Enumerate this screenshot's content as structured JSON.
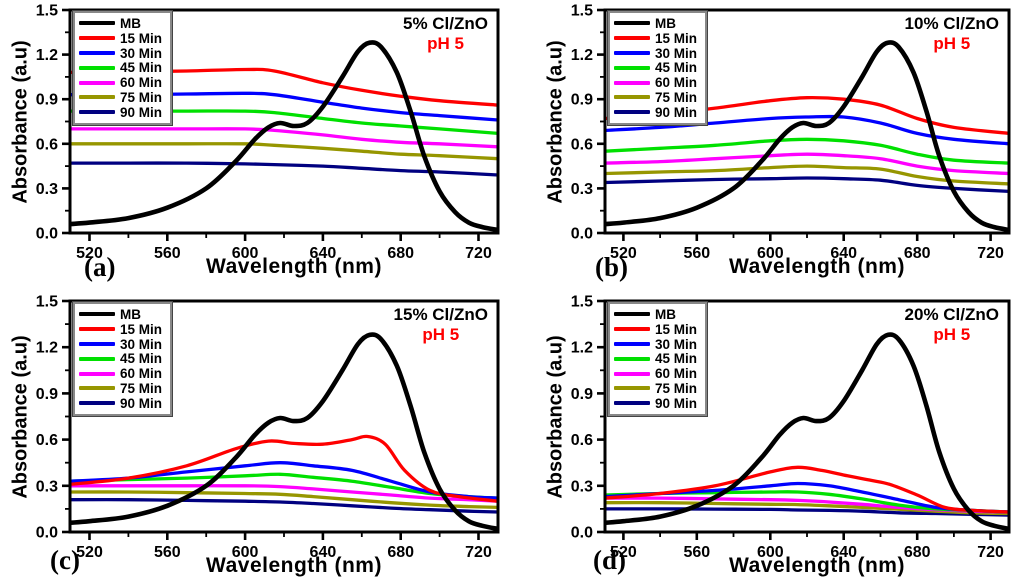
{
  "figure_background": "#ffffff",
  "annotation_color": "#fe0000",
  "axis_color": "#000000",
  "chart_data": [
    {
      "type": "line",
      "panel_label": "(a)",
      "title": "5% Cl/ZnO",
      "annotation": "pH 5",
      "xlabel": "Wavelength (nm)",
      "ylabel": "Absorbance (a.u)",
      "xlim": [
        510,
        730
      ],
      "ylim": [
        0,
        1.5
      ],
      "xticks": [
        "520",
        "560",
        "600",
        "640",
        "680",
        "720"
      ],
      "xminor": [
        540,
        580,
        620,
        660,
        700
      ],
      "yticks": [
        "0.0",
        "0.3",
        "0.6",
        "0.9",
        "1.2",
        "1.5"
      ],
      "yminor": [
        0.15,
        0.45,
        0.75,
        1.05,
        1.35
      ],
      "grid": false,
      "legend_position": "top-left",
      "series": [
        {
          "name": "MB",
          "color": "#000000",
          "x": [
            510,
            520,
            540,
            560,
            580,
            595,
            605,
            612,
            618,
            625,
            632,
            640,
            650,
            658,
            664,
            670,
            678,
            685,
            692,
            700,
            708,
            715,
            722,
            730
          ],
          "y": [
            0.06,
            0.07,
            0.1,
            0.17,
            0.3,
            0.48,
            0.63,
            0.71,
            0.74,
            0.72,
            0.74,
            0.85,
            1.05,
            1.22,
            1.28,
            1.25,
            1.08,
            0.82,
            0.52,
            0.28,
            0.14,
            0.07,
            0.04,
            0.02
          ]
        },
        {
          "name": "15 Min",
          "color": "#fe0000",
          "x": [
            510,
            540,
            570,
            600,
            615,
            640,
            660,
            680,
            700,
            730
          ],
          "y": [
            1.08,
            1.085,
            1.09,
            1.1,
            1.09,
            1.01,
            0.96,
            0.92,
            0.89,
            0.86
          ]
        },
        {
          "name": "30 Min",
          "color": "#0000fe",
          "x": [
            510,
            540,
            570,
            600,
            615,
            640,
            660,
            680,
            700,
            730
          ],
          "y": [
            0.93,
            0.93,
            0.935,
            0.94,
            0.93,
            0.88,
            0.84,
            0.81,
            0.79,
            0.76
          ]
        },
        {
          "name": "45 Min",
          "color": "#00e000",
          "x": [
            510,
            540,
            570,
            600,
            615,
            640,
            660,
            680,
            700,
            730
          ],
          "y": [
            0.82,
            0.82,
            0.82,
            0.82,
            0.81,
            0.77,
            0.74,
            0.72,
            0.7,
            0.67
          ]
        },
        {
          "name": "60 Min",
          "color": "#ff00ff",
          "x": [
            510,
            540,
            570,
            600,
            615,
            640,
            660,
            680,
            700,
            730
          ],
          "y": [
            0.7,
            0.7,
            0.7,
            0.7,
            0.69,
            0.66,
            0.63,
            0.61,
            0.6,
            0.58
          ]
        },
        {
          "name": "75 Min",
          "color": "#969600",
          "x": [
            510,
            540,
            570,
            600,
            615,
            640,
            660,
            680,
            700,
            730
          ],
          "y": [
            0.6,
            0.6,
            0.6,
            0.6,
            0.59,
            0.57,
            0.55,
            0.53,
            0.52,
            0.5
          ]
        },
        {
          "name": "90 Min",
          "color": "#000080",
          "x": [
            510,
            540,
            570,
            600,
            615,
            640,
            660,
            680,
            700,
            730
          ],
          "y": [
            0.47,
            0.47,
            0.47,
            0.465,
            0.46,
            0.45,
            0.435,
            0.42,
            0.41,
            0.39
          ]
        }
      ]
    },
    {
      "type": "line",
      "panel_label": "(b)",
      "title": "10% Cl/ZnO",
      "annotation": "pH 5",
      "xlabel": "Wavelength (nm)",
      "ylabel": "Absorbance (a.u)",
      "xlim": [
        510,
        730
      ],
      "ylim": [
        0,
        1.5
      ],
      "xticks": [
        "520",
        "560",
        "600",
        "640",
        "680",
        "720"
      ],
      "xminor": [
        540,
        580,
        620,
        660,
        700
      ],
      "yticks": [
        "0.0",
        "0.3",
        "0.6",
        "0.9",
        "1.2",
        "1.5"
      ],
      "yminor": [
        0.15,
        0.45,
        0.75,
        1.05,
        1.35
      ],
      "grid": false,
      "legend_position": "top-left",
      "series": [
        {
          "name": "MB",
          "color": "#000000",
          "x": [
            510,
            520,
            540,
            560,
            580,
            595,
            605,
            612,
            618,
            625,
            632,
            640,
            650,
            658,
            664,
            670,
            678,
            685,
            692,
            700,
            708,
            715,
            722,
            730
          ],
          "y": [
            0.06,
            0.07,
            0.1,
            0.17,
            0.3,
            0.48,
            0.63,
            0.71,
            0.74,
            0.72,
            0.74,
            0.85,
            1.05,
            1.22,
            1.28,
            1.25,
            1.08,
            0.82,
            0.52,
            0.28,
            0.14,
            0.07,
            0.04,
            0.02
          ]
        },
        {
          "name": "15 Min",
          "color": "#fe0000",
          "x": [
            510,
            540,
            570,
            600,
            620,
            640,
            660,
            680,
            700,
            730
          ],
          "y": [
            0.77,
            0.8,
            0.84,
            0.89,
            0.91,
            0.9,
            0.86,
            0.77,
            0.71,
            0.67
          ]
        },
        {
          "name": "30 Min",
          "color": "#0000fe",
          "x": [
            510,
            540,
            570,
            600,
            620,
            640,
            660,
            680,
            700,
            730
          ],
          "y": [
            0.69,
            0.71,
            0.74,
            0.77,
            0.78,
            0.78,
            0.74,
            0.67,
            0.63,
            0.6
          ]
        },
        {
          "name": "45 Min",
          "color": "#00e000",
          "x": [
            510,
            540,
            570,
            600,
            620,
            640,
            660,
            680,
            700,
            730
          ],
          "y": [
            0.55,
            0.57,
            0.59,
            0.62,
            0.63,
            0.62,
            0.59,
            0.53,
            0.49,
            0.47
          ]
        },
        {
          "name": "60 Min",
          "color": "#ff00ff",
          "x": [
            510,
            540,
            570,
            600,
            620,
            640,
            660,
            680,
            700,
            730
          ],
          "y": [
            0.47,
            0.48,
            0.5,
            0.52,
            0.53,
            0.52,
            0.5,
            0.45,
            0.42,
            0.4
          ]
        },
        {
          "name": "75 Min",
          "color": "#969600",
          "x": [
            510,
            540,
            570,
            600,
            620,
            640,
            660,
            680,
            700,
            730
          ],
          "y": [
            0.4,
            0.41,
            0.42,
            0.44,
            0.45,
            0.44,
            0.43,
            0.38,
            0.35,
            0.33
          ]
        },
        {
          "name": "90 Min",
          "color": "#000080",
          "x": [
            510,
            540,
            570,
            600,
            620,
            640,
            660,
            680,
            700,
            730
          ],
          "y": [
            0.34,
            0.35,
            0.36,
            0.365,
            0.37,
            0.365,
            0.355,
            0.32,
            0.3,
            0.28
          ]
        }
      ]
    },
    {
      "type": "line",
      "panel_label": "(c)",
      "title": "15% Cl/ZnO",
      "annotation": "pH 5",
      "xlabel": "Wavelength (nm)",
      "ylabel": "Absorbance (a.u)",
      "xlim": [
        510,
        730
      ],
      "ylim": [
        0,
        1.5
      ],
      "xticks": [
        "520",
        "560",
        "600",
        "640",
        "680",
        "720"
      ],
      "xminor": [
        540,
        580,
        620,
        660,
        700
      ],
      "yticks": [
        "0.0",
        "0.3",
        "0.6",
        "0.9",
        "1.2",
        "1.5"
      ],
      "yminor": [
        0.15,
        0.45,
        0.75,
        1.05,
        1.35
      ],
      "grid": false,
      "legend_position": "top-left",
      "series": [
        {
          "name": "MB",
          "color": "#000000",
          "x": [
            510,
            520,
            540,
            560,
            580,
            595,
            605,
            612,
            618,
            625,
            632,
            640,
            650,
            658,
            664,
            670,
            678,
            685,
            692,
            700,
            708,
            715,
            722,
            730
          ],
          "y": [
            0.06,
            0.07,
            0.1,
            0.17,
            0.3,
            0.48,
            0.63,
            0.71,
            0.74,
            0.72,
            0.74,
            0.85,
            1.05,
            1.22,
            1.28,
            1.25,
            1.08,
            0.82,
            0.52,
            0.28,
            0.14,
            0.07,
            0.04,
            0.02
          ]
        },
        {
          "name": "15 Min",
          "color": "#fe0000",
          "x": [
            510,
            540,
            570,
            595,
            612,
            625,
            640,
            655,
            663,
            672,
            682,
            695,
            710,
            730
          ],
          "y": [
            0.31,
            0.35,
            0.43,
            0.54,
            0.59,
            0.575,
            0.57,
            0.6,
            0.62,
            0.57,
            0.4,
            0.27,
            0.23,
            0.2
          ]
        },
        {
          "name": "30 Min",
          "color": "#0000fe",
          "x": [
            510,
            540,
            570,
            600,
            618,
            635,
            655,
            675,
            695,
            715,
            730
          ],
          "y": [
            0.33,
            0.35,
            0.39,
            0.43,
            0.45,
            0.43,
            0.4,
            0.33,
            0.26,
            0.23,
            0.22
          ]
        },
        {
          "name": "45 Min",
          "color": "#00e000",
          "x": [
            510,
            540,
            570,
            600,
            618,
            635,
            655,
            675,
            695,
            715,
            730
          ],
          "y": [
            0.33,
            0.34,
            0.35,
            0.365,
            0.375,
            0.355,
            0.33,
            0.29,
            0.25,
            0.23,
            0.22
          ]
        },
        {
          "name": "60 Min",
          "color": "#ff00ff",
          "x": [
            510,
            540,
            570,
            600,
            618,
            635,
            655,
            675,
            695,
            715,
            730
          ],
          "y": [
            0.3,
            0.3,
            0.3,
            0.3,
            0.295,
            0.28,
            0.26,
            0.24,
            0.22,
            0.21,
            0.2
          ]
        },
        {
          "name": "75 Min",
          "color": "#969600",
          "x": [
            510,
            540,
            570,
            600,
            618,
            635,
            655,
            675,
            695,
            715,
            730
          ],
          "y": [
            0.26,
            0.26,
            0.255,
            0.25,
            0.245,
            0.23,
            0.21,
            0.19,
            0.175,
            0.165,
            0.16
          ]
        },
        {
          "name": "90 Min",
          "color": "#000080",
          "x": [
            510,
            540,
            570,
            600,
            618,
            635,
            655,
            675,
            695,
            715,
            730
          ],
          "y": [
            0.21,
            0.21,
            0.205,
            0.2,
            0.195,
            0.185,
            0.17,
            0.155,
            0.145,
            0.135,
            0.13
          ]
        }
      ]
    },
    {
      "type": "line",
      "panel_label": "(d)",
      "title": "20% Cl/ZnO",
      "annotation": "pH 5",
      "xlabel": "Wavelength (nm)",
      "ylabel": "Absorbance (a.u)",
      "xlim": [
        510,
        730
      ],
      "ylim": [
        0,
        1.5
      ],
      "xticks": [
        "520",
        "560",
        "600",
        "640",
        "680",
        "720"
      ],
      "xminor": [
        540,
        580,
        620,
        660,
        700
      ],
      "yticks": [
        "0.0",
        "0.3",
        "0.6",
        "0.9",
        "1.2",
        "1.5"
      ],
      "yminor": [
        0.15,
        0.45,
        0.75,
        1.05,
        1.35
      ],
      "grid": false,
      "legend_position": "top-left",
      "series": [
        {
          "name": "MB",
          "color": "#000000",
          "x": [
            510,
            520,
            540,
            560,
            580,
            595,
            605,
            612,
            618,
            625,
            632,
            640,
            650,
            658,
            664,
            670,
            678,
            685,
            692,
            700,
            708,
            715,
            722,
            730
          ],
          "y": [
            0.06,
            0.07,
            0.1,
            0.17,
            0.3,
            0.48,
            0.63,
            0.71,
            0.74,
            0.72,
            0.74,
            0.85,
            1.05,
            1.22,
            1.28,
            1.25,
            1.08,
            0.82,
            0.52,
            0.28,
            0.14,
            0.07,
            0.04,
            0.02
          ]
        },
        {
          "name": "15 Min",
          "color": "#fe0000",
          "x": [
            510,
            540,
            570,
            600,
            615,
            628,
            642,
            655,
            665,
            680,
            695,
            710,
            730
          ],
          "y": [
            0.22,
            0.25,
            0.3,
            0.39,
            0.42,
            0.4,
            0.365,
            0.335,
            0.31,
            0.24,
            0.16,
            0.14,
            0.13
          ]
        },
        {
          "name": "30 Min",
          "color": "#0000fe",
          "x": [
            510,
            540,
            570,
            600,
            615,
            632,
            650,
            670,
            690,
            710,
            730
          ],
          "y": [
            0.23,
            0.25,
            0.27,
            0.3,
            0.315,
            0.3,
            0.26,
            0.21,
            0.16,
            0.14,
            0.13
          ]
        },
        {
          "name": "45 Min",
          "color": "#00e000",
          "x": [
            510,
            540,
            570,
            600,
            615,
            632,
            650,
            670,
            690,
            710,
            730
          ],
          "y": [
            0.24,
            0.25,
            0.255,
            0.26,
            0.26,
            0.245,
            0.215,
            0.175,
            0.15,
            0.14,
            0.13
          ]
        },
        {
          "name": "60 Min",
          "color": "#ff00ff",
          "x": [
            510,
            540,
            570,
            600,
            615,
            632,
            650,
            670,
            690,
            710,
            730
          ],
          "y": [
            0.22,
            0.22,
            0.215,
            0.21,
            0.205,
            0.195,
            0.18,
            0.16,
            0.145,
            0.135,
            0.13
          ]
        },
        {
          "name": "75 Min",
          "color": "#969600",
          "x": [
            510,
            540,
            570,
            600,
            615,
            632,
            650,
            670,
            690,
            710,
            730
          ],
          "y": [
            0.19,
            0.19,
            0.185,
            0.18,
            0.178,
            0.17,
            0.16,
            0.148,
            0.135,
            0.125,
            0.12
          ]
        },
        {
          "name": "90 Min",
          "color": "#000080",
          "x": [
            510,
            540,
            570,
            600,
            615,
            632,
            650,
            670,
            690,
            710,
            730
          ],
          "y": [
            0.15,
            0.15,
            0.149,
            0.147,
            0.143,
            0.14,
            0.135,
            0.125,
            0.12,
            0.115,
            0.11
          ]
        }
      ]
    }
  ]
}
